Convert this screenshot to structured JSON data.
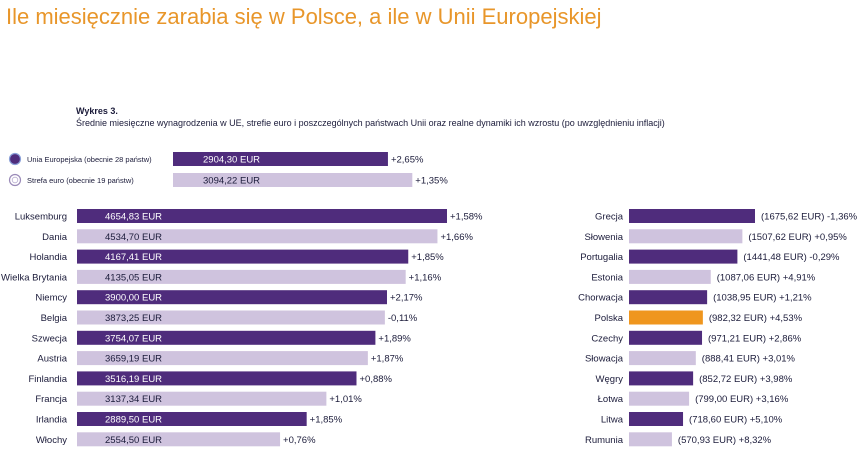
{
  "title": "Ile miesięcznie zarabia się w Polsce, a ile w Unii Europejskiej",
  "chart_kicker": "Wykres 3.",
  "chart_subtitle": "Średnie miesięczne wynagrodzenia w UE, strefie euro i poszczególnych państwach Unii oraz realne dynamiki ich wzrostu (po uwzględnieniu inflacji)",
  "colors": {
    "dark": "#4f2c7c",
    "light": "#cfc3de",
    "highlight": "#ef961e",
    "highlight_text": "#e8962a",
    "title": "#e8962a"
  },
  "chart_data": {
    "type": "bar",
    "orientation": "horizontal",
    "unit": "EUR",
    "summary": [
      {
        "name": "Unia Europejska (obecnie 28 państw)",
        "value": 2904.3,
        "value_label": "2904,30 EUR",
        "change": "+2,65%",
        "style": "dark",
        "icon": "eu-circle-icon"
      },
      {
        "name": "Strefa euro (obecnie 19 państw)",
        "value": 3094.22,
        "value_label": "3094,22 EUR",
        "change": "+1,35%",
        "style": "light",
        "icon": "euro-circle-icon"
      }
    ],
    "left_panel": [
      {
        "country": "Luksemburg",
        "value": 4654.83,
        "value_label": "4654,83 EUR",
        "change": "+1,58%",
        "style": "dark"
      },
      {
        "country": "Dania",
        "value": 4534.7,
        "value_label": "4534,70 EUR",
        "change": "+1,66%",
        "style": "light"
      },
      {
        "country": "Holandia",
        "value": 4167.41,
        "value_label": "4167,41 EUR",
        "change": "+1,85%",
        "style": "dark"
      },
      {
        "country": "Wielka Brytania",
        "value": 4135.05,
        "value_label": "4135,05 EUR",
        "change": "+1,16%",
        "style": "light"
      },
      {
        "country": "Niemcy",
        "value": 3900.0,
        "value_label": "3900,00 EUR",
        "change": "+2,17%",
        "style": "dark"
      },
      {
        "country": "Belgia",
        "value": 3873.25,
        "value_label": "3873,25 EUR",
        "change": "-0,11%",
        "style": "light"
      },
      {
        "country": "Szwecja",
        "value": 3754.07,
        "value_label": "3754,07 EUR",
        "change": "+1,89%",
        "style": "dark"
      },
      {
        "country": "Austria",
        "value": 3659.19,
        "value_label": "3659,19 EUR",
        "change": "+1,87%",
        "style": "light"
      },
      {
        "country": "Finlandia",
        "value": 3516.19,
        "value_label": "3516,19 EUR",
        "change": "+0,88%",
        "style": "dark"
      },
      {
        "country": "Francja",
        "value": 3137.34,
        "value_label": "3137,34 EUR",
        "change": "+1,01%",
        "style": "light"
      },
      {
        "country": "Irlandia",
        "value": 2889.5,
        "value_label": "2889,50 EUR",
        "change": "+1,85%",
        "style": "dark"
      },
      {
        "country": "Włochy",
        "value": 2554.5,
        "value_label": "2554,50 EUR",
        "change": "+0,76%",
        "style": "light"
      }
    ],
    "right_panel": [
      {
        "country": "Grecja",
        "value": 1675.62,
        "value_label": "(1675,62 EUR)",
        "change": "-1,36%",
        "style": "dark"
      },
      {
        "country": "Słowenia",
        "value": 1507.62,
        "value_label": "(1507,62 EUR)",
        "change": "+0,95%",
        "style": "light"
      },
      {
        "country": "Portugalia",
        "value": 1441.48,
        "value_label": "(1441,48 EUR)",
        "change": "-0,29%",
        "style": "dark"
      },
      {
        "country": "Estonia",
        "value": 1087.06,
        "value_label": "(1087,06 EUR)",
        "change": "+4,91%",
        "style": "light"
      },
      {
        "country": "Chorwacja",
        "value": 1038.95,
        "value_label": "(1038,95 EUR)",
        "change": "+1,21%",
        "style": "dark"
      },
      {
        "country": "Polska",
        "value": 982.32,
        "value_label": "(982,32 EUR)",
        "change": "+4,53%",
        "style": "highlight"
      },
      {
        "country": "Czechy",
        "value": 971.21,
        "value_label": "(971,21 EUR)",
        "change": "+2,86%",
        "style": "dark"
      },
      {
        "country": "Słowacja",
        "value": 888.41,
        "value_label": "(888,41 EUR)",
        "change": "+3,01%",
        "style": "light"
      },
      {
        "country": "Węgry",
        "value": 852.72,
        "value_label": "(852,72 EUR)",
        "change": "+3,98%",
        "style": "dark"
      },
      {
        "country": "Łotwa",
        "value": 799.0,
        "value_label": "(799,00 EUR)",
        "change": "+3,16%",
        "style": "light"
      },
      {
        "country": "Litwa",
        "value": 718.6,
        "value_label": "(718,60 EUR)",
        "change": "+5,10%",
        "style": "dark"
      },
      {
        "country": "Rumunia",
        "value": 570.93,
        "value_label": "(570,93 EUR)",
        "change": "+8,32%",
        "style": "light"
      }
    ]
  }
}
